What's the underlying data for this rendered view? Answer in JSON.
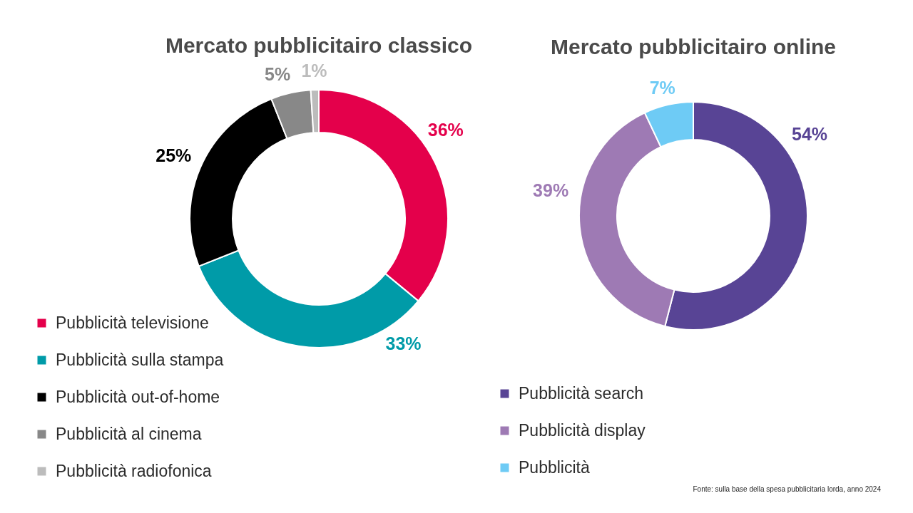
{
  "chart_data": [
    {
      "type": "donut",
      "title": "Mercato pubblicitairo classico",
      "categories": [
        "Pubblicità televisione",
        "Pubblicità sulla stampa",
        "Pubblicità out-of-home",
        "Pubblicità al cinema",
        "Pubblicità radiofonica"
      ],
      "values": [
        36,
        33,
        25,
        5,
        1
      ],
      "colors": [
        "#e4004b",
        "#009ba8",
        "#000000",
        "#888888",
        "#bcbcbc"
      ],
      "value_labels": [
        "36%",
        "33%",
        "25%",
        "5%",
        "1%"
      ],
      "legend": "bottom left"
    },
    {
      "type": "donut",
      "title": "Mercato pubblicitairo online",
      "categories": [
        "Pubblicità search",
        "Pubblicità display",
        "Pubblicità"
      ],
      "values": [
        54,
        39,
        7
      ],
      "colors": [
        "#584495",
        "#9e7ab4",
        "#6ecbf5"
      ],
      "value_labels": [
        "54%",
        "39%",
        "7%"
      ],
      "legend": "bottom left",
      "annotations": [
        "Fonte: sulla base della spesa pubblicitaria lorda, anno 2024"
      ]
    }
  ]
}
